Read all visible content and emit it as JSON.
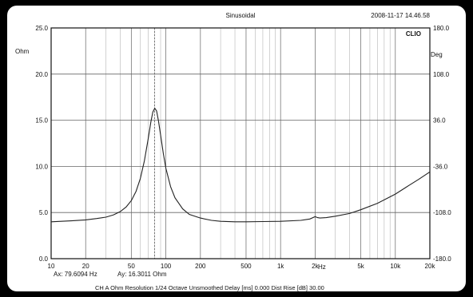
{
  "chart_data": {
    "type": "line",
    "title": "Sinusoidal",
    "timestamp": "2008-11-17 14.46.58",
    "brand": "CLIO",
    "x_unit_label": "Hz",
    "x_scale": "log",
    "xlim": [
      10,
      20000
    ],
    "x_ticks": [
      {
        "value": 10,
        "label": "10"
      },
      {
        "value": 20,
        "label": "20"
      },
      {
        "value": 50,
        "label": "50"
      },
      {
        "value": 100,
        "label": "100"
      },
      {
        "value": 200,
        "label": "200"
      },
      {
        "value": 500,
        "label": "500"
      },
      {
        "value": 1000,
        "label": "1k"
      },
      {
        "value": 2000,
        "label": "2k"
      },
      {
        "value": 5000,
        "label": "5k"
      },
      {
        "value": 10000,
        "label": "10k"
      },
      {
        "value": 20000,
        "label": "20k"
      }
    ],
    "y_left_unit": "Ohm",
    "ylim_left": [
      0,
      25
    ],
    "y_left_ticks": [
      "0.0",
      "5.0",
      "10.0",
      "15.0",
      "20.0",
      "25.0"
    ],
    "y_right_unit": "Deg",
    "ylim_right": [
      -180,
      180
    ],
    "y_right_ticks": [
      "-180.0",
      "-108.0",
      "-36.0",
      "36.0",
      "108.0",
      "180.0"
    ],
    "grid": true,
    "cursor": {
      "x": 79.6094,
      "y": 16.3011
    },
    "readout_x": "Ax: 79.6094 Hz",
    "readout_y": "Ay: 16.3011 Ohm",
    "footer": "CH A   Ohm   Resolution 1/24 Octave   Unsmoothed   Delay [ms] 0.000   Dist Rise [dB] 30.00",
    "series": [
      {
        "x": [
          10,
          15,
          20,
          25,
          30,
          35,
          40,
          45,
          50,
          55,
          60,
          65,
          70,
          74,
          77,
          80,
          83,
          86,
          90,
          95,
          100,
          110,
          120,
          140,
          160,
          200,
          250,
          300,
          400,
          500,
          700,
          1000,
          1500,
          1800,
          2000,
          2100,
          2200,
          2500,
          3000,
          4000,
          5000,
          7000,
          10000,
          13000,
          16000,
          20000
        ],
        "y": [
          4.0,
          4.1,
          4.2,
          4.35,
          4.5,
          4.75,
          5.1,
          5.6,
          6.3,
          7.3,
          8.7,
          10.6,
          12.9,
          14.8,
          15.9,
          16.3,
          16.0,
          15.0,
          13.4,
          11.4,
          9.8,
          7.8,
          6.6,
          5.4,
          4.8,
          4.4,
          4.15,
          4.05,
          4.0,
          4.0,
          4.02,
          4.05,
          4.15,
          4.3,
          4.55,
          4.45,
          4.4,
          4.45,
          4.6,
          4.9,
          5.3,
          6.0,
          7.0,
          7.9,
          8.6,
          9.4
        ]
      }
    ]
  }
}
